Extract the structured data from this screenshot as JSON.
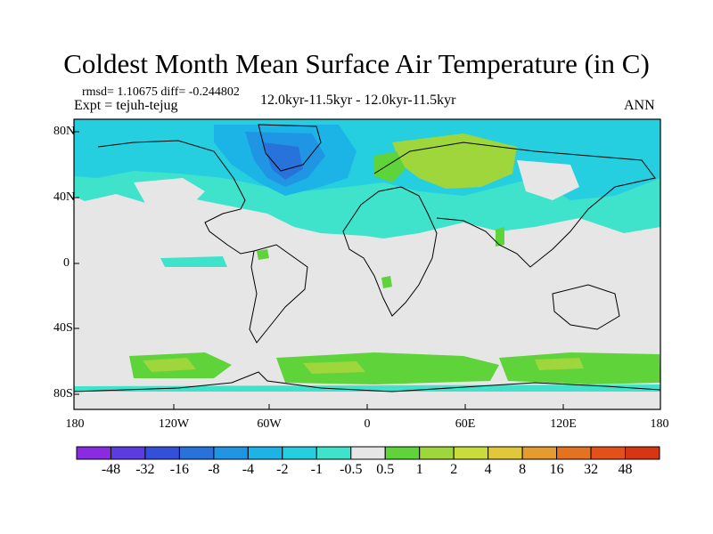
{
  "title": "Coldest Month Mean Surface Air Temperature (in C)",
  "stats_line": "rmsd= 1.10675 diff= -0.244802",
  "expt_line": "Expt = tejuh-tejug",
  "range_line": "12.0kyr-11.5kyr - 12.0kyr-11.5kyr",
  "season_label": "ANN",
  "lat_labels": [
    "80N",
    "40N",
    "0",
    "40S",
    "80S"
  ],
  "lon_labels": [
    "180",
    "120W",
    "60W",
    "0",
    "60E",
    "120E",
    "180"
  ],
  "colorbar": {
    "labels": [
      "-48",
      "-32",
      "-16",
      "-8",
      "-4",
      "-2",
      "-1",
      "-0.5",
      "0.5",
      "1",
      "2",
      "4",
      "8",
      "16",
      "32",
      "48"
    ],
    "colors": [
      "#8a2be2",
      "#5a3ce0",
      "#3550d8",
      "#2872dc",
      "#1f95e3",
      "#1cb3e6",
      "#25cfe0",
      "#3fe3cc",
      "#e6e6e6",
      "#5ed33a",
      "#9fd63c",
      "#c8dd3c",
      "#e0c83a",
      "#e59b2e",
      "#e5721f",
      "#e4501a",
      "#d83512"
    ]
  },
  "colors": {
    "ocean_neutral": "#e6e6e6",
    "coast": "#000000"
  }
}
